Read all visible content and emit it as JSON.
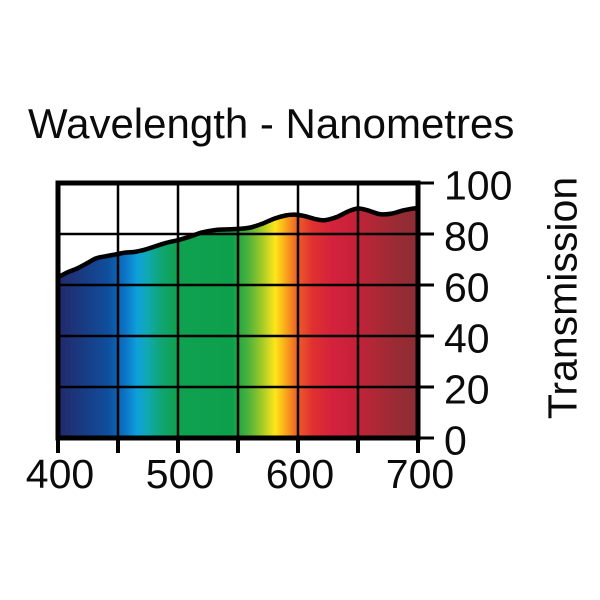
{
  "page": {
    "background": "#ffffff",
    "text_color": "#0b0b0b",
    "axis_color": "#000000"
  },
  "chart_data": {
    "type": "area",
    "title": "Wavelength - Nanometres",
    "xlabel": "Wavelength - Nanometres",
    "ylabel": "Transmission",
    "xlim": [
      400,
      700
    ],
    "ylim": [
      0,
      100
    ],
    "grid": true,
    "legend": "none",
    "x_ticks_labeled": [
      400,
      500,
      600,
      700
    ],
    "x_ticks_minor": [
      400,
      450,
      500,
      550,
      600,
      650,
      700
    ],
    "y_ticks": [
      0,
      20,
      40,
      60,
      80,
      100
    ],
    "series": [
      {
        "name": "Transmission %",
        "points": [
          [
            400,
            63
          ],
          [
            408,
            65
          ],
          [
            416,
            66.5
          ],
          [
            424,
            68.5
          ],
          [
            432,
            70.5
          ],
          [
            440,
            71.3
          ],
          [
            448,
            72
          ],
          [
            456,
            72.7
          ],
          [
            464,
            73
          ],
          [
            472,
            73.8
          ],
          [
            480,
            75
          ],
          [
            490,
            76.5
          ],
          [
            500,
            77.6
          ],
          [
            510,
            79
          ],
          [
            520,
            80.6
          ],
          [
            530,
            81.5
          ],
          [
            540,
            81.8
          ],
          [
            550,
            82
          ],
          [
            560,
            82.5
          ],
          [
            570,
            84
          ],
          [
            580,
            86
          ],
          [
            590,
            87.3
          ],
          [
            597,
            87.6
          ],
          [
            605,
            87.1
          ],
          [
            615,
            85.8
          ],
          [
            622,
            85.4
          ],
          [
            632,
            86.6
          ],
          [
            642,
            88.9
          ],
          [
            650,
            90
          ],
          [
            658,
            89.3
          ],
          [
            668,
            87.8
          ],
          [
            678,
            88
          ],
          [
            688,
            89.3
          ],
          [
            700,
            90.3
          ]
        ]
      }
    ],
    "spectrum_gradient": [
      {
        "wl": 400,
        "color": "#22296b"
      },
      {
        "wl": 420,
        "color": "#1a3a82"
      },
      {
        "wl": 442,
        "color": "#0f4f9e"
      },
      {
        "wl": 456,
        "color": "#0c74c6"
      },
      {
        "wl": 466,
        "color": "#0fa0dc"
      },
      {
        "wl": 475,
        "color": "#10a9ae"
      },
      {
        "wl": 486,
        "color": "#10a573"
      },
      {
        "wl": 498,
        "color": "#0fa150"
      },
      {
        "wl": 545,
        "color": "#0da04a"
      },
      {
        "wl": 558,
        "color": "#49b13c"
      },
      {
        "wl": 570,
        "color": "#a3ca27"
      },
      {
        "wl": 581,
        "color": "#ffe51a"
      },
      {
        "wl": 590,
        "color": "#f8a51c"
      },
      {
        "wl": 600,
        "color": "#ee5a28"
      },
      {
        "wl": 612,
        "color": "#e03130"
      },
      {
        "wl": 628,
        "color": "#d4223c"
      },
      {
        "wl": 648,
        "color": "#c62138"
      },
      {
        "wl": 665,
        "color": "#ad2836"
      },
      {
        "wl": 682,
        "color": "#9a2b34"
      },
      {
        "wl": 700,
        "color": "#8b2d33"
      }
    ]
  }
}
